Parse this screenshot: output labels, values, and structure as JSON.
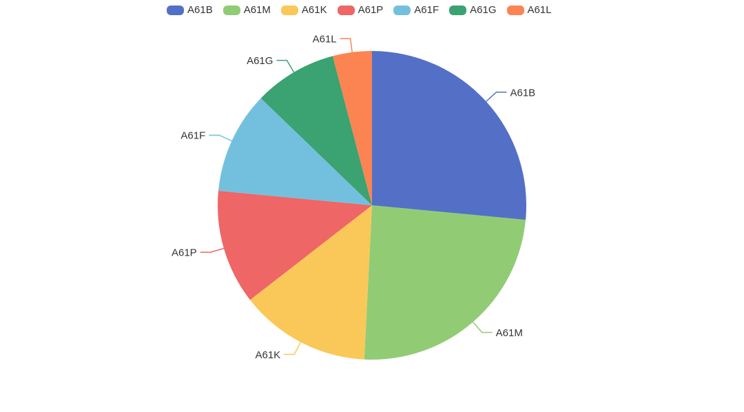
{
  "chart_data": {
    "type": "pie",
    "title": "",
    "legend_position": "top",
    "direction": "clockwise",
    "start_angle_deg": 0,
    "center": [
      540,
      298
    ],
    "radius": 224,
    "label_line_length": 20,
    "label_line_length2": 15,
    "label_color": "#333333",
    "values_unit": "percent-share",
    "categories": [
      "A61B",
      "A61M",
      "A61K",
      "A61P",
      "A61F",
      "A61G",
      "A61L"
    ],
    "values": [
      26.5,
      24.3,
      13.7,
      12.0,
      10.7,
      8.7,
      4.1
    ],
    "series": [
      {
        "name": "A61B",
        "value": 26.5,
        "color": "#5470C6"
      },
      {
        "name": "A61M",
        "value": 24.3,
        "color": "#91CC75"
      },
      {
        "name": "A61K",
        "value": 13.7,
        "color": "#FAC858"
      },
      {
        "name": "A61P",
        "value": 12.0,
        "color": "#EE6666"
      },
      {
        "name": "A61F",
        "value": 10.7,
        "color": "#73C0DE"
      },
      {
        "name": "A61G",
        "value": 8.7,
        "color": "#3BA272"
      },
      {
        "name": "A61L",
        "value": 4.1,
        "color": "#FC8452"
      }
    ]
  }
}
